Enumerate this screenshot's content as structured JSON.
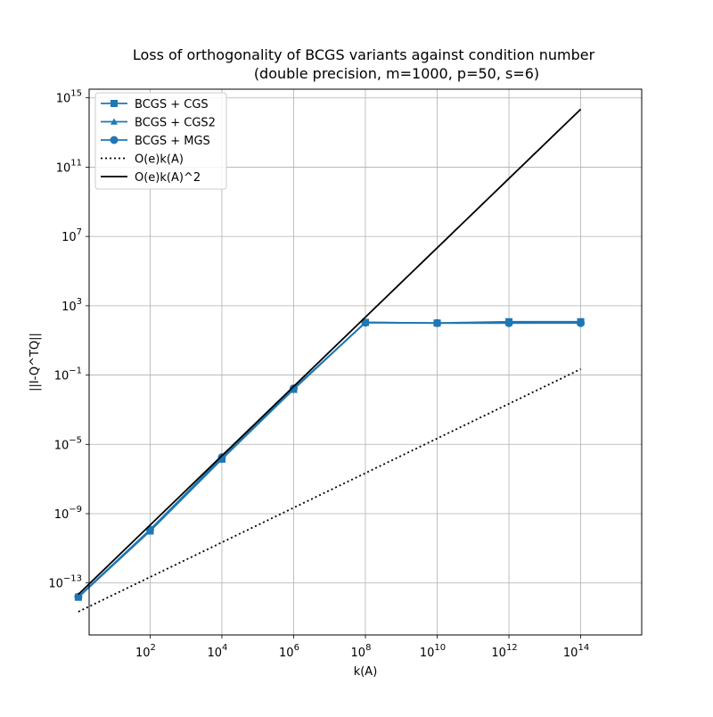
{
  "chart_data": {
    "type": "line",
    "title_line1": "Loss of orthogonality of BCGS variants against condition number",
    "title_line2": "(double precision, m=1000, p=50, s=6)",
    "xlabel": "k(A)",
    "ylabel": "||I-Q^TQ||",
    "xscale": "log",
    "yscale": "log",
    "xlim_log10": [
      0.3,
      15.7
    ],
    "ylim_log10": [
      -16.0,
      15.5
    ],
    "grid": true,
    "legend_position": "top-left",
    "xticks": [
      {
        "exp": 2,
        "label": "2"
      },
      {
        "exp": 4,
        "label": "4"
      },
      {
        "exp": 6,
        "label": "6"
      },
      {
        "exp": 8,
        "label": "8"
      },
      {
        "exp": 10,
        "label": "10"
      },
      {
        "exp": 12,
        "label": "12"
      },
      {
        "exp": 14,
        "label": "14"
      }
    ],
    "yticks": [
      {
        "exp": -13,
        "label": "−13"
      },
      {
        "exp": -9,
        "label": "−9"
      },
      {
        "exp": -5,
        "label": "−5"
      },
      {
        "exp": -1,
        "label": "−1"
      },
      {
        "exp": 3,
        "label": "3"
      },
      {
        "exp": 7,
        "label": "7"
      },
      {
        "exp": 11,
        "label": "11"
      },
      {
        "exp": 15,
        "label": "15"
      }
    ],
    "tick_base": "10",
    "x": [
      1,
      100,
      10000,
      1000000,
      100000000,
      10000000000,
      1000000000000,
      100000000000000,
      10000000000000000
    ],
    "series": [
      {
        "name": "BCGS + CGS",
        "marker": "square",
        "color": "#1f77b4",
        "linestyle": "solid",
        "values": [
          1.5e-14,
          1e-10,
          1.4e-06,
          0.015,
          110,
          100,
          120,
          120,
          null
        ]
      },
      {
        "name": "BCGS + CGS2",
        "marker": "triangle",
        "color": "#1f77b4",
        "linestyle": "solid",
        "values": [
          1.5e-14,
          1.2e-10,
          1.6e-06,
          0.016,
          110,
          100,
          100,
          105,
          null
        ]
      },
      {
        "name": "BCGS + MGS",
        "marker": "circle",
        "color": "#1f77b4",
        "linestyle": "solid",
        "values": [
          1.6e-14,
          1.2e-10,
          1.8e-06,
          0.017,
          105,
          100,
          100,
          100,
          null
        ]
      },
      {
        "name": "O(e)k(A)",
        "marker": "none",
        "color": "#000000",
        "linestyle": "dotted",
        "values": [
          2.2e-15,
          2.2e-13,
          2.2e-11,
          2.2e-09,
          2.2e-07,
          2.2e-05,
          0.0022,
          0.22,
          null
        ]
      },
      {
        "name": "O(e)k(A)^2",
        "marker": "none",
        "color": "#000000",
        "linestyle": "solid",
        "values": [
          2.2e-14,
          2.2e-10,
          2.2e-06,
          0.022,
          220,
          2200000.0,
          22000000000.0,
          220000000000000.0,
          null
        ]
      }
    ]
  }
}
